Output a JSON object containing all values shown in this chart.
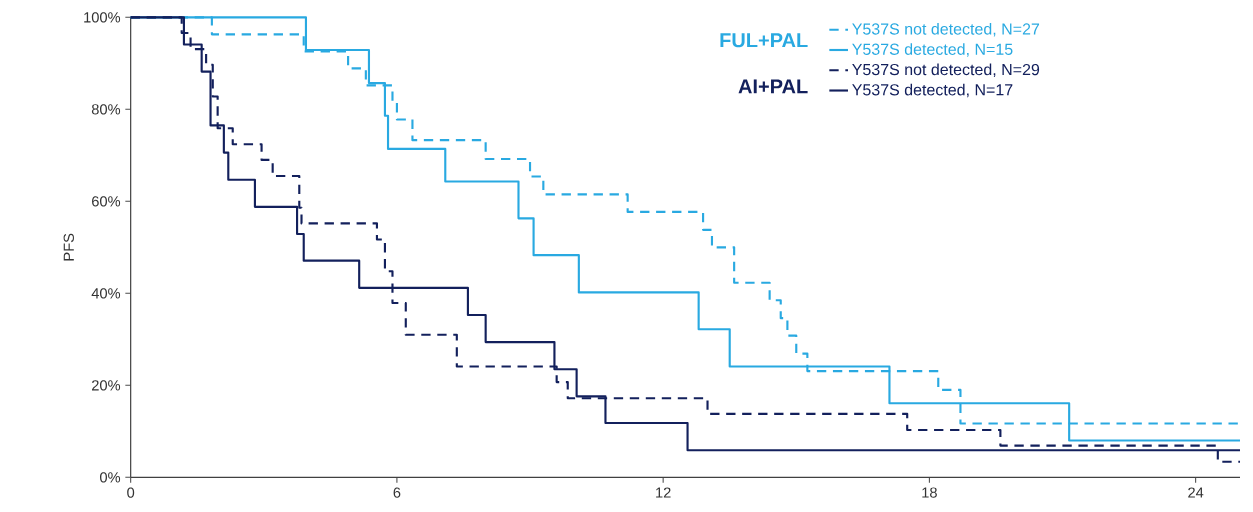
{
  "chart_data": {
    "type": "step",
    "ylabel": "PFS",
    "annotations": [
      "FUL+PAL",
      "AI+PAL"
    ],
    "series": [
      {
        "name": "Y537S not detected, N=27",
        "color": "#29a9e1",
        "line_style": "dashed",
        "x": [
          0,
          1.83,
          3.9,
          4.9,
          5.3,
          5.9,
          6.0,
          6.35,
          8.0,
          9.0,
          9.3,
          11.2,
          12.9,
          13.1,
          13.6,
          14.4,
          14.65,
          14.8,
          15.0,
          15.25,
          18.2,
          18.7,
          25
        ],
        "values": [
          100,
          96.3,
          92.6,
          88.9,
          85.2,
          81.5,
          77.8,
          73.3,
          69.2,
          65.4,
          61.5,
          57.7,
          53.8,
          50.0,
          42.3,
          38.5,
          34.6,
          30.8,
          26.9,
          23.1,
          19.0,
          11.7,
          11.7
        ]
      },
      {
        "name": "Y537S detected, N=15",
        "color": "#29a9e1",
        "line_style": "solid",
        "x": [
          0,
          3.95,
          5.37,
          5.73,
          5.8,
          7.09,
          8.74,
          9.08,
          10.1,
          12.8,
          13.5,
          17.1,
          21.15,
          25
        ],
        "values": [
          100,
          92.9,
          85.7,
          78.6,
          71.4,
          64.3,
          56.3,
          48.3,
          40.2,
          32.2,
          24.1,
          16.1,
          8.0,
          8.0
        ]
      },
      {
        "name": "Y537S not detected, N=29",
        "color": "#13205c",
        "line_style": "dashed",
        "x": [
          0,
          1.15,
          1.35,
          1.7,
          1.85,
          1.96,
          2.3,
          2.95,
          3.2,
          3.8,
          3.85,
          5.55,
          5.73,
          5.9,
          6.2,
          7.35,
          9.6,
          9.85,
          13.0,
          17.5,
          19.6,
          24.5,
          25
        ],
        "values": [
          100,
          96.6,
          93.1,
          89.7,
          82.8,
          75.9,
          72.4,
          69.0,
          65.5,
          58.6,
          55.2,
          51.7,
          44.8,
          37.9,
          31.0,
          24.1,
          20.7,
          17.2,
          13.8,
          10.3,
          6.9,
          3.4,
          3.4
        ]
      },
      {
        "name": "Y537S detected, N=17",
        "color": "#13205c",
        "line_style": "solid",
        "x": [
          0,
          1.2,
          1.6,
          1.8,
          2.1,
          2.2,
          2.8,
          3.75,
          3.9,
          5.15,
          7.6,
          8.0,
          9.55,
          10.05,
          10.7,
          12.55,
          25
        ],
        "values": [
          100,
          94.1,
          88.2,
          76.5,
          70.6,
          64.7,
          58.8,
          52.9,
          47.1,
          41.2,
          35.3,
          29.4,
          23.5,
          17.6,
          11.8,
          5.9,
          5.9
        ]
      }
    ],
    "xlim": [
      0,
      25
    ],
    "ylim": [
      0,
      100
    ],
    "xticks": [
      0,
      6,
      12,
      18,
      24
    ],
    "yticks": [
      {
        "value": 0,
        "label": "0%"
      },
      {
        "value": 20,
        "label": "20%"
      },
      {
        "value": 40,
        "label": "40%"
      },
      {
        "value": 60,
        "label": "60%"
      },
      {
        "value": 80,
        "label": "80%"
      },
      {
        "value": 100,
        "label": "100%"
      }
    ],
    "grid": false,
    "legend": "top right"
  }
}
